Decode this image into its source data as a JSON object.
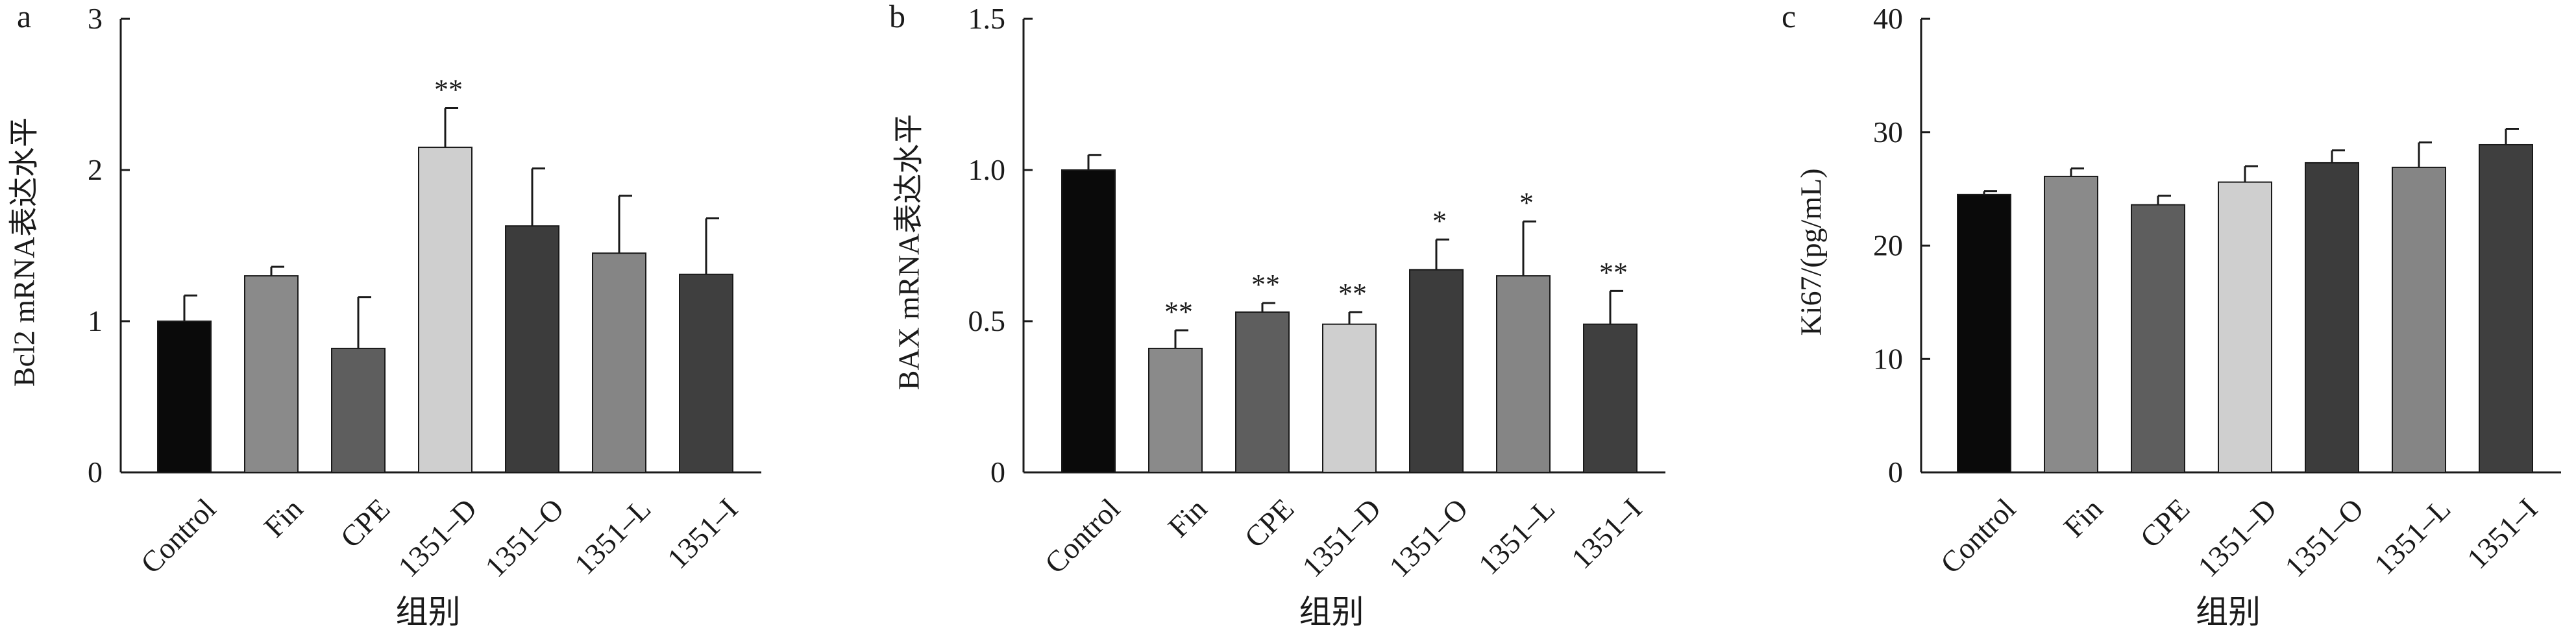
{
  "colors": {
    "axis": "#1a1a1a",
    "bars": [
      "#0a0a0a",
      "#8a8a8a",
      "#5e5e5e",
      "#cfcfcf",
      "#3c3c3c",
      "#858585",
      "#3f3f3f"
    ]
  },
  "chart_data": [
    {
      "panel": "a",
      "type": "bar",
      "categories": [
        "Control",
        "Fin",
        "CPE",
        "1351–D",
        "1351–O",
        "1351–L",
        "1351–I"
      ],
      "values": [
        1.0,
        1.3,
        0.82,
        2.15,
        1.63,
        1.45,
        1.31
      ],
      "errors": [
        0.17,
        0.06,
        0.34,
        0.26,
        0.38,
        0.38,
        0.37
      ],
      "significance": [
        "",
        "",
        "",
        "**",
        "",
        "",
        ""
      ],
      "xlabel": "组别",
      "ylabel": "Bcl2 mRNA表达水平",
      "ylim": [
        0,
        3
      ],
      "yticks": [
        0,
        1,
        2,
        3
      ],
      "ytick_labels": [
        "0",
        "1",
        "2",
        "3"
      ]
    },
    {
      "panel": "b",
      "type": "bar",
      "categories": [
        "Control",
        "Fin",
        "CPE",
        "1351–D",
        "1351–O",
        "1351–L",
        "1351–I"
      ],
      "values": [
        1.0,
        0.41,
        0.53,
        0.49,
        0.67,
        0.65,
        0.49
      ],
      "errors": [
        0.05,
        0.06,
        0.03,
        0.04,
        0.1,
        0.18,
        0.11
      ],
      "significance": [
        "",
        "**",
        "**",
        "**",
        "*",
        "*",
        "**"
      ],
      "xlabel": "组别",
      "ylabel": "BAX mRNA表达水平",
      "ylim": [
        0,
        1.5
      ],
      "yticks": [
        0,
        0.5,
        1.0,
        1.5
      ],
      "ytick_labels": [
        "0",
        "0.5",
        "1.0",
        "1.5"
      ]
    },
    {
      "panel": "c",
      "type": "bar",
      "categories": [
        "Control",
        "Fin",
        "CPE",
        "1351–D",
        "1351–O",
        "1351–L",
        "1351–I"
      ],
      "values": [
        24.5,
        26.1,
        23.6,
        25.6,
        27.3,
        26.9,
        28.9
      ],
      "errors": [
        0.3,
        0.7,
        0.8,
        1.4,
        1.1,
        2.2,
        1.4
      ],
      "significance": [
        "",
        "",
        "",
        "",
        "",
        "",
        ""
      ],
      "xlabel": "组别",
      "ylabel": "Ki67/(pg/mL)",
      "ylim": [
        0,
        40
      ],
      "yticks": [
        0,
        10,
        20,
        30,
        40
      ],
      "ytick_labels": [
        "0",
        "10",
        "20",
        "30",
        "40"
      ]
    }
  ]
}
